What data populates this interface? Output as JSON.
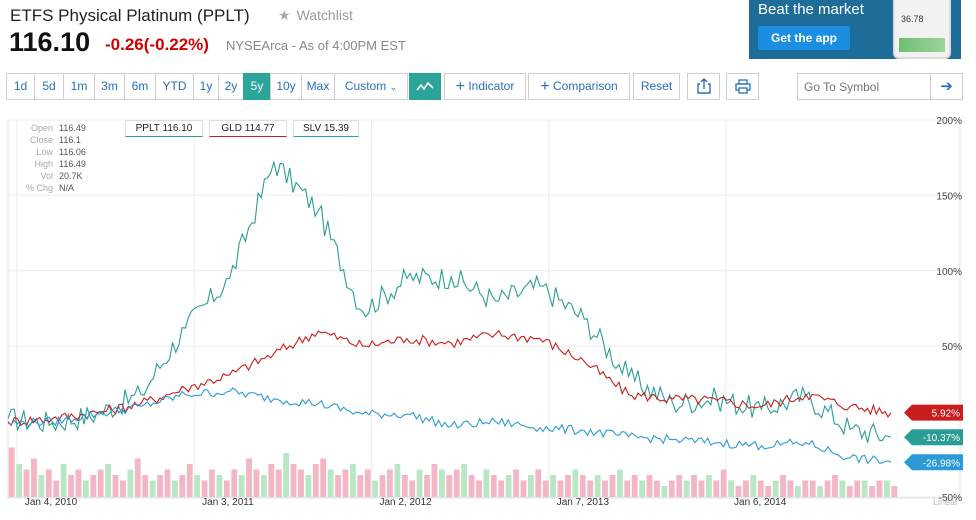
{
  "header": {
    "title": "ETFS Physical Platinum (PPLT)",
    "watchlist_label": "Watchlist",
    "price": "116.10",
    "change": "-0.26",
    "change_pct": "(-0.22%)",
    "exchange_note": "NYSEArca - As of 4:00PM EST"
  },
  "ad": {
    "headline": "Beat the market",
    "button": "Get the app",
    "phone_value": "36.78"
  },
  "toolbar": {
    "ranges": [
      "1d",
      "5d",
      "1m",
      "3m",
      "6m",
      "YTD",
      "1y",
      "2y",
      "5y",
      "10y",
      "Max"
    ],
    "active_range": "5y",
    "custom_label": "Custom",
    "indicator_label": "Indicator",
    "comparison_label": "Comparison",
    "reset_label": "Reset",
    "go_placeholder": "Go To Symbol",
    "icons": [
      "line-chart-icon",
      "share-icon",
      "print-icon",
      "arrow-right-icon"
    ]
  },
  "ohlc": [
    {
      "k": "Open",
      "v": "116.49"
    },
    {
      "k": "Close",
      "v": "116.1"
    },
    {
      "k": "Low",
      "v": "116.06"
    },
    {
      "k": "High",
      "v": "116.49"
    },
    {
      "k": "Vol",
      "v": "20.7K"
    },
    {
      "k": "% Chg",
      "v": "N/A"
    }
  ],
  "chart_data": {
    "type": "line",
    "title": "",
    "xlabel": "",
    "ylabel": "",
    "x_ticks": [
      "Jan 4, 2010",
      "Jan 3, 2011",
      "Jan 2, 2012",
      "Jan 7, 2013",
      "Jan 6, 2014"
    ],
    "y_ticks": [
      "200%",
      "150%",
      "100%",
      "50%",
      "-50%"
    ],
    "ylim": [
      -50,
      200
    ],
    "scale_label": "Linear",
    "legend": [
      {
        "label": "PPLT 116.10",
        "color": "#2a9d94"
      },
      {
        "label": "GLD 114.77",
        "color": "#c81e1e"
      },
      {
        "label": "SLV 15.39",
        "color": "#2b9ad6"
      }
    ],
    "x_time": [
      0,
      0.25,
      0.5,
      0.75,
      1.0,
      1.25,
      1.5,
      1.75,
      2.0,
      2.25,
      2.5,
      2.75,
      3.0,
      3.25,
      3.5,
      3.75,
      4.0,
      4.25,
      4.5,
      4.75,
      4.98
    ],
    "series": [
      {
        "name": "PPLT",
        "color": "#2a9d94",
        "end_label": "-10.37%",
        "values": [
          2,
          -1,
          5,
          18,
          62,
          95,
          172,
          140,
          73,
          95,
          96,
          80,
          90,
          68,
          30,
          12,
          15,
          8,
          17,
          -5,
          -10.37
        ]
      },
      {
        "name": "GLD",
        "color": "#c81e1e",
        "end_label": "5.92%",
        "values": [
          0,
          2,
          6,
          12,
          22,
          31,
          45,
          60,
          50,
          55,
          52,
          58,
          55,
          40,
          18,
          15,
          14,
          10,
          18,
          10,
          5.92
        ]
      },
      {
        "name": "SLV",
        "color": "#2b9ad6",
        "end_label": "-26.98%",
        "values": [
          -1,
          0,
          5,
          10,
          18,
          20,
          15,
          12,
          5,
          5,
          -3,
          0,
          -4,
          -6,
          -10,
          -12,
          -14,
          -16,
          -14,
          -24,
          -26.98
        ]
      }
    ],
    "volume_bars": [
      0.9,
      0.6,
      0.5,
      0.7,
      0.4,
      0.5,
      0.3,
      0.6,
      0.4,
      0.5,
      0.3,
      0.4,
      0.5,
      0.6,
      0.4,
      0.3,
      0.5,
      0.7,
      0.4,
      0.3,
      0.4,
      0.5,
      0.3,
      0.4,
      0.6,
      0.4,
      0.3,
      0.5,
      0.4,
      0.3,
      0.5,
      0.4,
      0.7,
      0.5,
      0.4,
      0.6,
      0.5,
      0.8,
      0.6,
      0.5,
      0.4,
      0.6,
      0.7,
      0.5,
      0.4,
      0.5,
      0.6,
      0.4,
      0.5,
      0.3,
      0.4,
      0.5,
      0.6,
      0.4,
      0.3,
      0.5,
      0.4,
      0.6,
      0.5,
      0.4,
      0.5,
      0.6,
      0.4,
      0.3,
      0.5,
      0.4,
      0.3,
      0.4,
      0.5,
      0.3,
      0.4,
      0.5,
      0.3,
      0.4,
      0.3,
      0.4,
      0.5,
      0.4,
      0.3,
      0.4,
      0.3,
      0.4,
      0.5,
      0.3,
      0.4,
      0.3,
      0.4,
      0.3,
      0.2,
      0.3,
      0.4,
      0.3,
      0.4,
      0.3,
      0.4,
      0.3,
      0.5,
      0.3,
      0.2,
      0.3,
      0.4,
      0.3,
      0.2,
      0.3,
      0.4,
      0.3,
      0.2,
      0.3,
      0.3,
      0.2,
      0.3,
      0.4,
      0.3,
      0.2,
      0.3,
      0.3,
      0.2,
      0.3,
      0.3,
      0.2
    ]
  }
}
